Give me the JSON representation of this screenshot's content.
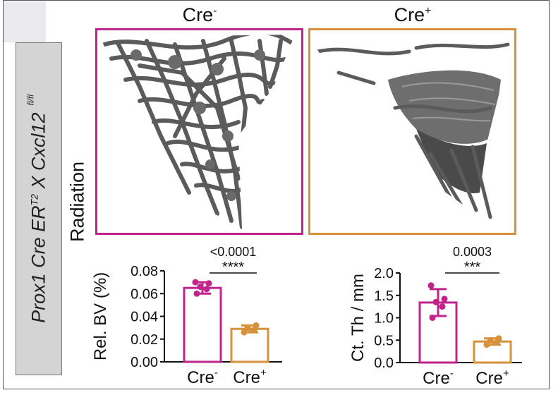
{
  "side_label": {
    "gene": "Prox1 Cre ER",
    "gene_sup": "T2",
    "cross": "X Cxcl12",
    "flag": "fl/fl"
  },
  "row_label": "Radiation",
  "headers": [
    {
      "base": "Cre",
      "sup": "-"
    },
    {
      "base": "Cre",
      "sup": "+"
    }
  ],
  "colors": {
    "cre_minus": "#c0248a",
    "cre_plus": "#d6913a",
    "bone": "#5b5b5b"
  },
  "chart_data": [
    {
      "type": "bar",
      "ylabel": "Rel. BV (%)",
      "categories": [
        {
          "base": "Cre",
          "sup": "-"
        },
        {
          "base": "Cre",
          "sup": "+"
        }
      ],
      "ylim": [
        0,
        0.08
      ],
      "yticks": [
        "0.00",
        "0.02",
        "0.04",
        "0.06",
        "0.08"
      ],
      "ytick_values": [
        0,
        0.02,
        0.04,
        0.06,
        0.08
      ],
      "series": [
        {
          "name": "Cre-",
          "mean": 0.065,
          "sd": 0.005,
          "points": [
            0.06,
            0.064,
            0.066,
            0.069,
            0.07
          ]
        },
        {
          "name": "Cre+",
          "mean": 0.029,
          "sd": 0.003,
          "points": [
            0.026,
            0.028,
            0.03,
            0.032
          ]
        }
      ],
      "pvalue": "<0.0001",
      "stars": "****"
    },
    {
      "type": "bar",
      "ylabel": "Ct. Th / mm",
      "categories": [
        {
          "base": "Cre",
          "sup": "-"
        },
        {
          "base": "Cre",
          "sup": "+"
        }
      ],
      "ylim": [
        0,
        2.0
      ],
      "yticks": [
        "0.0",
        "0.5",
        "1.0",
        "1.5",
        "2.0"
      ],
      "ytick_values": [
        0,
        0.5,
        1.0,
        1.5,
        2.0
      ],
      "series": [
        {
          "name": "Cre-",
          "mean": 1.34,
          "sd": 0.3,
          "points": [
            1.0,
            1.25,
            1.35,
            1.42,
            1.72
          ]
        },
        {
          "name": "Cre+",
          "mean": 0.47,
          "sd": 0.07,
          "points": [
            0.4,
            0.45,
            0.5,
            0.54
          ]
        }
      ],
      "pvalue": "0.0003",
      "stars": "***"
    }
  ]
}
